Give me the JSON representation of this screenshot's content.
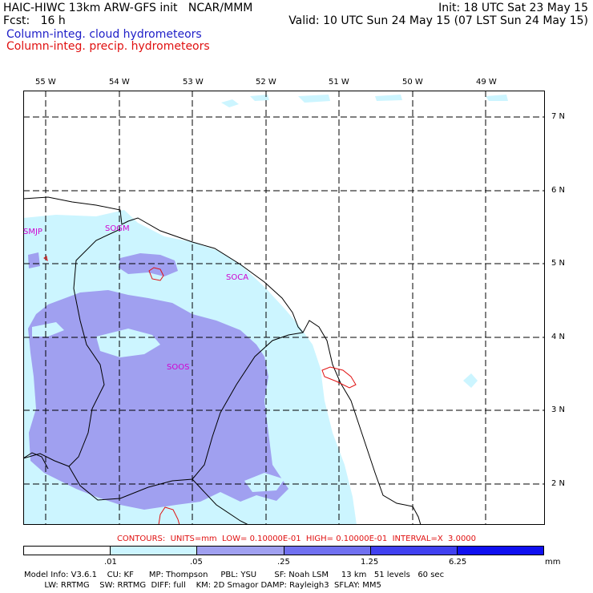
{
  "header": {
    "left_line1": "HAIC-HIWC 13km ARW-GFS init   NCAR/MMM",
    "left_line2": "Fcst:   16 h",
    "right_line1": "Init: 18 UTC Sat 23 May 15",
    "right_line2": "Valid: 10 UTC Sun 24 May 15 (07 LST Sun 24 May 15)",
    "field1": "Column-integ. cloud hydrometeors",
    "field2": "Column-integ. precip. hydrometeors"
  },
  "map": {
    "lon_labels": [
      "55 W",
      "54 W",
      "53 W",
      "52 W",
      "51 W",
      "50 W",
      "49 W"
    ],
    "lat_labels": [
      "7 N",
      "6 N",
      "5 N",
      "4 N",
      "3 N",
      "2 N"
    ],
    "stations": [
      "SMJP",
      "SOGM",
      "SOCA",
      "SOOS"
    ],
    "colors": {
      "cloud_light": "#ccf5ff",
      "cloud_medium": "#a0a0f0",
      "precip_contour": "#e01010",
      "border": "#000000",
      "grid": "#000000",
      "station": "#d000d0"
    }
  },
  "contours_note": "CONTOURS:  UNITS=mm  LOW= 0.10000E-01  HIGH= 0.10000E-01  INTERVAL=X  3.0000",
  "colorbar": {
    "labels": [
      ".01",
      ".05",
      ".25",
      "1.25",
      "6.25"
    ],
    "units": "mm",
    "colors": [
      "#ffffff",
      "#ccf5ff",
      "#a0a0f0",
      "#7070f0",
      "#4040f0",
      "#1010f0"
    ]
  },
  "footer": {
    "line1": "Model Info: V3.6.1    CU: KF      MP: Thompson     PBL: YSU       SF: Noah LSM     13 km   51 levels   60 sec",
    "line2": "        LW: RRTMG    SW: RRTMG  DIFF: full    KM: 2D Smagor DAMP: Rayleigh3  SFLAY: MM5"
  }
}
